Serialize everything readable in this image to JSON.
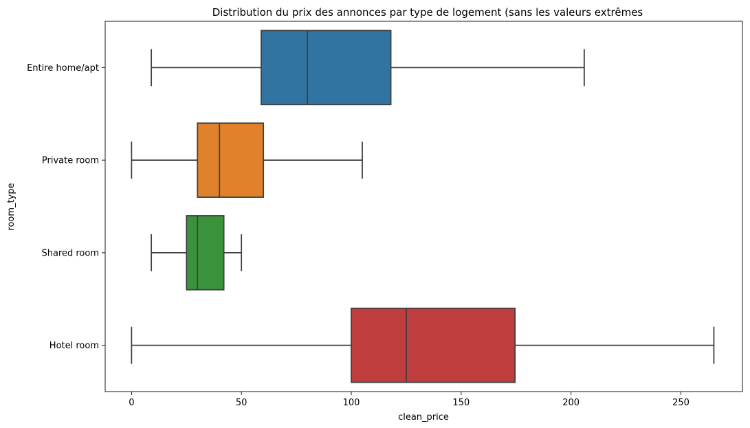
{
  "chart_data": {
    "type": "box",
    "orientation": "horizontal",
    "title": "Distribution du prix des annonces par type de logement (sans les valeurs extrêmes",
    "xlabel": "clean_price",
    "ylabel": "room_type",
    "xlim": [
      -12,
      278
    ],
    "xticks": [
      0,
      50,
      100,
      150,
      200,
      250
    ],
    "grid": false,
    "categories": [
      "Entire home/apt",
      "Private room",
      "Shared room",
      "Hotel room"
    ],
    "boxes": [
      {
        "name": "Entire home/apt",
        "whisker_low": 9,
        "q1": 59,
        "median": 80,
        "q3": 118,
        "whisker_high": 206,
        "color": "#3274a1"
      },
      {
        "name": "Private room",
        "whisker_low": 0,
        "q1": 30,
        "median": 40,
        "q3": 60,
        "whisker_high": 105,
        "color": "#e1812c"
      },
      {
        "name": "Shared room",
        "whisker_low": 9,
        "q1": 25,
        "median": 30,
        "q3": 42,
        "whisker_high": 50,
        "color": "#3a923a"
      },
      {
        "name": "Hotel room",
        "whisker_low": 0,
        "q1": 100,
        "median": 125,
        "q3": 174.5,
        "whisker_high": 265,
        "color": "#c03d3e"
      }
    ]
  }
}
